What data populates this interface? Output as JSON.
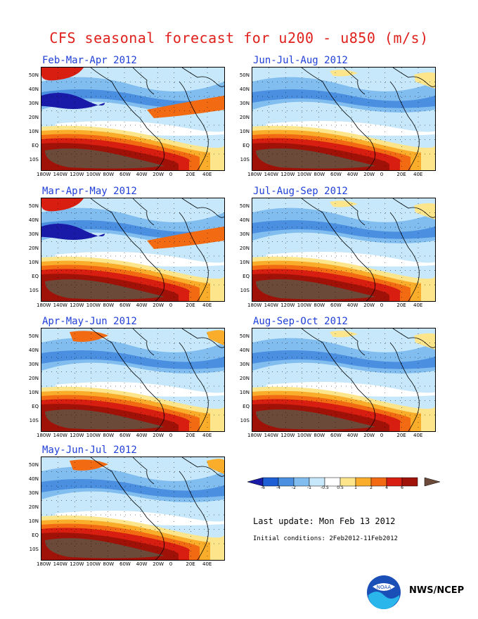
{
  "title": "CFS seasonal forecast for u200 - u850 (m/s)",
  "panels": [
    {
      "label": "Feb-Mar-Apr 2012"
    },
    {
      "label": "Jun-Jul-Aug 2012"
    },
    {
      "label": "Mar-Apr-May 2012"
    },
    {
      "label": "Jul-Aug-Sep 2012"
    },
    {
      "label": "Apr-May-Jun 2012"
    },
    {
      "label": "Aug-Sep-Oct 2012"
    },
    {
      "label": "May-Jun-Jul 2012"
    }
  ],
  "lat_labels": [
    "50N",
    "40N",
    "30N",
    "20N",
    "10N",
    "EQ",
    "10S"
  ],
  "lon_labels": [
    "180W",
    "140W",
    "120W",
    "100W",
    "80W",
    "60W",
    "40W",
    "20W",
    "0",
    "20E",
    "40E"
  ],
  "colorbar": {
    "labels": [
      "-6",
      "-4",
      "-2",
      "-1",
      "-0.5",
      "0.5",
      "1",
      "2",
      "4",
      "6"
    ],
    "colors": [
      "#1a1aa8",
      "#1e5fd6",
      "#4a8fe0",
      "#82bdf0",
      "#c6e8fa",
      "#ffffff",
      "#fde58c",
      "#f9ad2a",
      "#f26a12",
      "#d81e10",
      "#a01208",
      "#6b4a3a"
    ]
  },
  "last_update": "Last update: Mon Feb 13 2012",
  "initial_conditions": "Initial conditions: 2Feb2012-11Feb2012",
  "organization": "NWS/NCEP",
  "logo_text": "NOAA"
}
